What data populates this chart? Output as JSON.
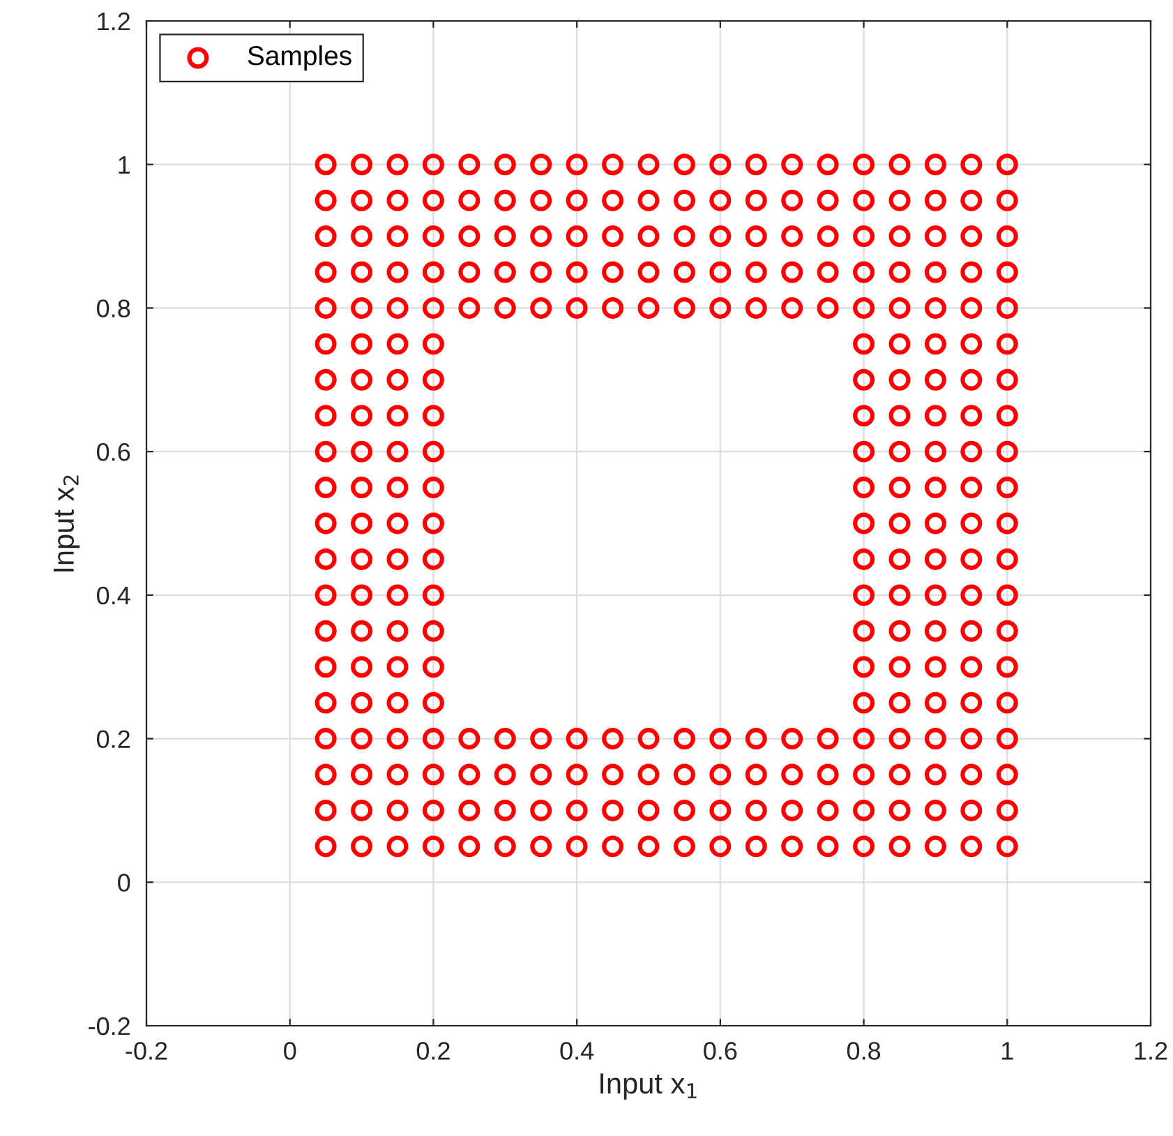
{
  "chart_data": {
    "type": "scatter",
    "xlabel": "Input x$_{1}$",
    "ylabel": "Input x$_{2}$",
    "xlim": [
      -0.2,
      1.2
    ],
    "ylim": [
      -0.2,
      1.2
    ],
    "xticks": [
      -0.2,
      0,
      0.2,
      0.4,
      0.6,
      0.8,
      1,
      1.2
    ],
    "yticks": [
      -0.2,
      0,
      0.2,
      0.4,
      0.6,
      0.8,
      1,
      1.2
    ],
    "grid": true,
    "legend": "top left",
    "marker": "circle",
    "series": [
      {
        "name": "Samples",
        "color": "#ff0000",
        "x": [
          0.05,
          0.1,
          0.15,
          0.2,
          0.25,
          0.3,
          0.35,
          0.4,
          0.45,
          0.5,
          0.55,
          0.6,
          0.65,
          0.7,
          0.75,
          0.8,
          0.85,
          0.9,
          0.95,
          1,
          0.05,
          0.1,
          0.15,
          0.2,
          0.25,
          0.3,
          0.35,
          0.4,
          0.45,
          0.5,
          0.55,
          0.6,
          0.65,
          0.7,
          0.75,
          0.8,
          0.85,
          0.9,
          0.95,
          1,
          0.05,
          0.1,
          0.15,
          0.2,
          0.25,
          0.3,
          0.35,
          0.4,
          0.45,
          0.5,
          0.55,
          0.6,
          0.65,
          0.7,
          0.75,
          0.8,
          0.85,
          0.9,
          0.95,
          1,
          0.05,
          0.1,
          0.15,
          0.2,
          0.25,
          0.3,
          0.35,
          0.4,
          0.45,
          0.5,
          0.55,
          0.6,
          0.65,
          0.7,
          0.75,
          0.8,
          0.85,
          0.9,
          0.95,
          1,
          0.05,
          0.1,
          0.15,
          0.2,
          0.8,
          0.85,
          0.9,
          0.95,
          1,
          0.05,
          0.1,
          0.15,
          0.2,
          0.8,
          0.85,
          0.9,
          0.95,
          1,
          0.05,
          0.1,
          0.15,
          0.2,
          0.8,
          0.85,
          0.9,
          0.95,
          1,
          0.05,
          0.1,
          0.15,
          0.2,
          0.8,
          0.85,
          0.9,
          0.95,
          1,
          0.05,
          0.1,
          0.15,
          0.2,
          0.8,
          0.85,
          0.9,
          0.95,
          1,
          0.05,
          0.1,
          0.15,
          0.2,
          0.8,
          0.85,
          0.9,
          0.95,
          1,
          0.05,
          0.1,
          0.15,
          0.2,
          0.8,
          0.85,
          0.9,
          0.95,
          1,
          0.05,
          0.1,
          0.15,
          0.2,
          0.8,
          0.85,
          0.9,
          0.95,
          1,
          0.05,
          0.1,
          0.15,
          0.2,
          0.8,
          0.85,
          0.9,
          0.95,
          1,
          0.05,
          0.1,
          0.15,
          0.2,
          0.8,
          0.85,
          0.9,
          0.95,
          1,
          0.05,
          0.1,
          0.15,
          0.2,
          0.8,
          0.85,
          0.9,
          0.95,
          1,
          0.05,
          0.1,
          0.15,
          0.2,
          0.25,
          0.3,
          0.35,
          0.4,
          0.45,
          0.5,
          0.55,
          0.6,
          0.65,
          0.7,
          0.75,
          0.8,
          0.85,
          0.9,
          0.95,
          1,
          0.05,
          0.1,
          0.15,
          0.2,
          0.25,
          0.3,
          0.35,
          0.4,
          0.45,
          0.5,
          0.55,
          0.6,
          0.65,
          0.7,
          0.75,
          0.8,
          0.85,
          0.9,
          0.95,
          1,
          0.05,
          0.1,
          0.15,
          0.2,
          0.25,
          0.3,
          0.35,
          0.4,
          0.45,
          0.5,
          0.55,
          0.6,
          0.65,
          0.7,
          0.75,
          0.8,
          0.85,
          0.9,
          0.95,
          1,
          0.05,
          0.1,
          0.15,
          0.2,
          0.25,
          0.3,
          0.35,
          0.4,
          0.45,
          0.5,
          0.55,
          0.6,
          0.65,
          0.7,
          0.75,
          0.8,
          0.85,
          0.9,
          0.95,
          1,
          0.05,
          0.1,
          0.15,
          0.2,
          0.25,
          0.3,
          0.35,
          0.4,
          0.45,
          0.5,
          0.55,
          0.6,
          0.65,
          0.7,
          0.75,
          0.8,
          0.85,
          0.9,
          0.95,
          1
        ],
        "values": [
          0.05,
          0.05,
          0.05,
          0.05,
          0.05,
          0.05,
          0.05,
          0.05,
          0.05,
          0.05,
          0.05,
          0.05,
          0.05,
          0.05,
          0.05,
          0.05,
          0.05,
          0.05,
          0.05,
          0.05,
          0.1,
          0.1,
          0.1,
          0.1,
          0.1,
          0.1,
          0.1,
          0.1,
          0.1,
          0.1,
          0.1,
          0.1,
          0.1,
          0.1,
          0.1,
          0.1,
          0.1,
          0.1,
          0.1,
          0.1,
          0.15,
          0.15,
          0.15,
          0.15,
          0.15,
          0.15,
          0.15,
          0.15,
          0.15,
          0.15,
          0.15,
          0.15,
          0.15,
          0.15,
          0.15,
          0.15,
          0.15,
          0.15,
          0.15,
          0.15,
          0.2,
          0.2,
          0.2,
          0.2,
          0.2,
          0.2,
          0.2,
          0.2,
          0.2,
          0.2,
          0.2,
          0.2,
          0.2,
          0.2,
          0.2,
          0.2,
          0.2,
          0.2,
          0.2,
          0.2,
          0.25,
          0.25,
          0.25,
          0.25,
          0.25,
          0.25,
          0.25,
          0.25,
          0.25,
          0.3,
          0.3,
          0.3,
          0.3,
          0.3,
          0.3,
          0.3,
          0.3,
          0.3,
          0.35,
          0.35,
          0.35,
          0.35,
          0.35,
          0.35,
          0.35,
          0.35,
          0.35,
          0.4,
          0.4,
          0.4,
          0.4,
          0.4,
          0.4,
          0.4,
          0.4,
          0.4,
          0.45,
          0.45,
          0.45,
          0.45,
          0.45,
          0.45,
          0.45,
          0.45,
          0.45,
          0.5,
          0.5,
          0.5,
          0.5,
          0.5,
          0.5,
          0.5,
          0.5,
          0.5,
          0.55,
          0.55,
          0.55,
          0.55,
          0.55,
          0.55,
          0.55,
          0.55,
          0.55,
          0.6,
          0.6,
          0.6,
          0.6,
          0.6,
          0.6,
          0.6,
          0.6,
          0.6,
          0.65,
          0.65,
          0.65,
          0.65,
          0.65,
          0.65,
          0.65,
          0.65,
          0.65,
          0.7,
          0.7,
          0.7,
          0.7,
          0.7,
          0.7,
          0.7,
          0.7,
          0.7,
          0.75,
          0.75,
          0.75,
          0.75,
          0.75,
          0.75,
          0.75,
          0.75,
          0.75,
          0.8,
          0.8,
          0.8,
          0.8,
          0.8,
          0.8,
          0.8,
          0.8,
          0.8,
          0.8,
          0.8,
          0.8,
          0.8,
          0.8,
          0.8,
          0.8,
          0.8,
          0.8,
          0.8,
          0.8,
          0.85,
          0.85,
          0.85,
          0.85,
          0.85,
          0.85,
          0.85,
          0.85,
          0.85,
          0.85,
          0.85,
          0.85,
          0.85,
          0.85,
          0.85,
          0.85,
          0.85,
          0.85,
          0.85,
          0.85,
          0.9,
          0.9,
          0.9,
          0.9,
          0.9,
          0.9,
          0.9,
          0.9,
          0.9,
          0.9,
          0.9,
          0.9,
          0.9,
          0.9,
          0.9,
          0.9,
          0.9,
          0.9,
          0.9,
          0.9,
          0.95,
          0.95,
          0.95,
          0.95,
          0.95,
          0.95,
          0.95,
          0.95,
          0.95,
          0.95,
          0.95,
          0.95,
          0.95,
          0.95,
          0.95,
          0.95,
          0.95,
          0.95,
          0.95,
          0.95,
          1,
          1,
          1,
          1,
          1,
          1,
          1,
          1,
          1,
          1,
          1,
          1,
          1,
          1,
          1,
          1,
          1,
          1,
          1,
          1
        ]
      }
    ]
  }
}
